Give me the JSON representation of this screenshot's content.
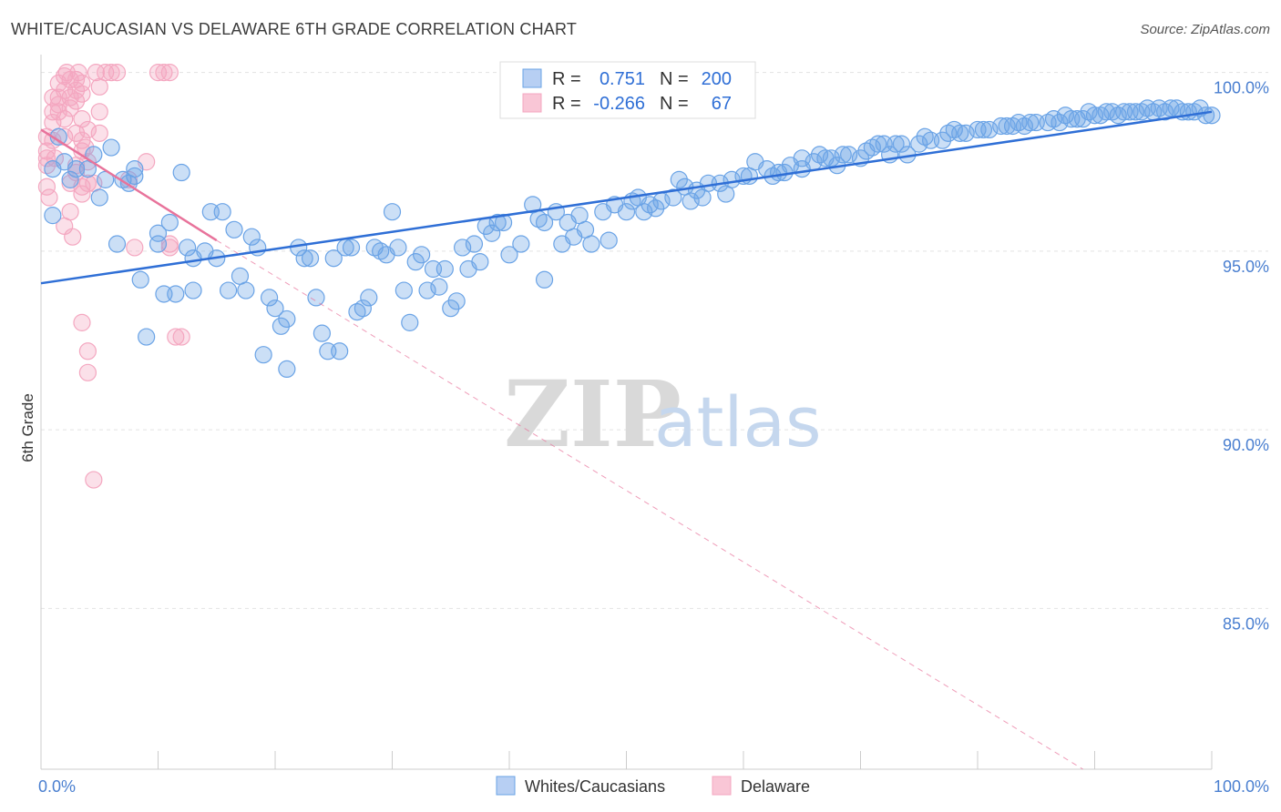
{
  "title": "WHITE/CAUCASIAN VS DELAWARE 6TH GRADE CORRELATION CHART",
  "source": "Source: ZipAtlas.com",
  "watermark": {
    "zip": "ZIP",
    "atlas": "atlas"
  },
  "colors": {
    "blue": "#6aa3e6",
    "blue_line": "#2f6fd6",
    "pink": "#f4a7c0",
    "pink_line": "#e8739b",
    "tick": "#4a7fd0"
  },
  "legend": {
    "rows": [
      {
        "r_label": "R =",
        "r_value": "0.751",
        "n_label": "N =",
        "n_value": "200"
      },
      {
        "r_label": "R =",
        "r_value": "-0.266",
        "n_label": "N =",
        "n_value": "67"
      }
    ]
  },
  "bottom_legend": [
    "Whites/Caucasians",
    "Delaware"
  ],
  "chart_data": {
    "type": "scatter",
    "title": "WHITE/CAUCASIAN VS DELAWARE 6TH GRADE CORRELATION CHART",
    "xlabel": "",
    "ylabel": "6th Grade",
    "xlim": [
      0,
      100
    ],
    "ylim": [
      80.5,
      100.5
    ],
    "x_tick_labels": [
      "0.0%",
      "100.0%"
    ],
    "y_ticks": [
      85,
      90,
      95,
      100
    ],
    "y_tick_labels": [
      "85.0%",
      "90.0%",
      "95.0%",
      "100.0%"
    ],
    "grid": true,
    "legend_position": "top-center",
    "series": [
      {
        "name": "Whites/Caucasians",
        "color": "#6aa3e6",
        "trend": {
          "x": [
            0,
            100
          ],
          "y": [
            94.1,
            98.9
          ]
        },
        "points": [
          [
            1,
            97.3
          ],
          [
            1,
            96.0
          ],
          [
            1.5,
            98.2
          ],
          [
            2,
            97.5
          ],
          [
            2.5,
            97.0
          ],
          [
            3,
            97.3
          ],
          [
            4,
            97.3
          ],
          [
            4.5,
            97.7
          ],
          [
            5,
            96.5
          ],
          [
            5.5,
            97.0
          ],
          [
            6,
            97.9
          ],
          [
            6.5,
            95.2
          ],
          [
            7,
            97.0
          ],
          [
            7.5,
            96.9
          ],
          [
            8,
            97.3
          ],
          [
            8,
            97.1
          ],
          [
            8.5,
            94.2
          ],
          [
            9,
            92.6
          ],
          [
            10,
            95.2
          ],
          [
            10,
            95.5
          ],
          [
            10.5,
            93.8
          ],
          [
            11,
            95.8
          ],
          [
            11.5,
            93.8
          ],
          [
            12,
            97.2
          ],
          [
            12.5,
            95.1
          ],
          [
            13,
            94.8
          ],
          [
            13,
            93.9
          ],
          [
            14,
            95.0
          ],
          [
            14.5,
            96.1
          ],
          [
            15,
            94.8
          ],
          [
            15.5,
            96.1
          ],
          [
            16,
            93.9
          ],
          [
            16.5,
            95.6
          ],
          [
            17,
            94.3
          ],
          [
            17.5,
            93.9
          ],
          [
            18,
            95.4
          ],
          [
            18.5,
            95.1
          ],
          [
            19,
            92.1
          ],
          [
            19.5,
            93.7
          ],
          [
            20,
            93.4
          ],
          [
            20.5,
            92.9
          ],
          [
            21,
            93.1
          ],
          [
            21,
            91.7
          ],
          [
            22,
            95.1
          ],
          [
            22.5,
            94.8
          ],
          [
            23,
            94.8
          ],
          [
            23.5,
            93.7
          ],
          [
            24,
            92.7
          ],
          [
            24.5,
            92.2
          ],
          [
            25,
            94.8
          ],
          [
            25.5,
            92.2
          ],
          [
            26,
            95.1
          ],
          [
            26.5,
            95.1
          ],
          [
            27,
            93.3
          ],
          [
            27.5,
            93.4
          ],
          [
            28,
            93.7
          ],
          [
            28.5,
            95.1
          ],
          [
            29,
            95.0
          ],
          [
            29.5,
            94.9
          ],
          [
            30,
            96.1
          ],
          [
            30.5,
            95.1
          ],
          [
            31,
            93.9
          ],
          [
            31.5,
            93.0
          ],
          [
            32,
            94.7
          ],
          [
            32.5,
            94.9
          ],
          [
            33,
            93.9
          ],
          [
            33.5,
            94.5
          ],
          [
            34,
            94.0
          ],
          [
            34.5,
            94.5
          ],
          [
            35,
            93.4
          ],
          [
            35.5,
            93.6
          ],
          [
            36,
            95.1
          ],
          [
            36.5,
            94.5
          ],
          [
            37,
            95.2
          ],
          [
            37.5,
            94.7
          ],
          [
            38,
            95.7
          ],
          [
            38.5,
            95.5
          ],
          [
            39,
            95.8
          ],
          [
            39.5,
            95.8
          ],
          [
            40,
            94.9
          ],
          [
            41,
            95.2
          ],
          [
            42,
            96.3
          ],
          [
            42.5,
            95.9
          ],
          [
            43,
            95.8
          ],
          [
            43,
            94.2
          ],
          [
            44,
            96.1
          ],
          [
            44.5,
            95.2
          ],
          [
            45,
            95.8
          ],
          [
            45.5,
            95.4
          ],
          [
            46,
            96.0
          ],
          [
            46.5,
            95.6
          ],
          [
            47,
            95.2
          ],
          [
            48,
            96.1
          ],
          [
            48.5,
            95.3
          ],
          [
            49,
            96.3
          ],
          [
            50,
            96.1
          ],
          [
            50.5,
            96.4
          ],
          [
            51,
            96.5
          ],
          [
            51.5,
            96.1
          ],
          [
            52,
            96.3
          ],
          [
            52.5,
            96.2
          ],
          [
            53,
            96.4
          ],
          [
            54,
            96.5
          ],
          [
            54.5,
            97.0
          ],
          [
            55,
            96.8
          ],
          [
            55.5,
            96.4
          ],
          [
            56,
            96.7
          ],
          [
            56.5,
            96.5
          ],
          [
            57,
            96.9
          ],
          [
            58,
            96.9
          ],
          [
            58.5,
            96.6
          ],
          [
            59,
            97.0
          ],
          [
            60,
            97.1
          ],
          [
            60.5,
            97.1
          ],
          [
            61,
            97.5
          ],
          [
            62,
            97.3
          ],
          [
            62.5,
            97.1
          ],
          [
            63,
            97.2
          ],
          [
            63.5,
            97.2
          ],
          [
            64,
            97.4
          ],
          [
            65,
            97.6
          ],
          [
            65,
            97.3
          ],
          [
            66,
            97.5
          ],
          [
            66.5,
            97.7
          ],
          [
            67,
            97.6
          ],
          [
            67.5,
            97.6
          ],
          [
            68,
            97.4
          ],
          [
            68.5,
            97.7
          ],
          [
            69,
            97.7
          ],
          [
            70,
            97.6
          ],
          [
            70.5,
            97.8
          ],
          [
            71,
            97.9
          ],
          [
            71.5,
            98.0
          ],
          [
            72,
            98.0
          ],
          [
            72.5,
            97.7
          ],
          [
            73,
            98.0
          ],
          [
            73.5,
            98.0
          ],
          [
            74,
            97.7
          ],
          [
            75,
            98.0
          ],
          [
            75.5,
            98.2
          ],
          [
            76,
            98.1
          ],
          [
            77,
            98.1
          ],
          [
            77.5,
            98.3
          ],
          [
            78,
            98.4
          ],
          [
            78.5,
            98.3
          ],
          [
            79,
            98.3
          ],
          [
            80,
            98.4
          ],
          [
            80.5,
            98.4
          ],
          [
            81,
            98.4
          ],
          [
            82,
            98.5
          ],
          [
            82.5,
            98.5
          ],
          [
            83,
            98.5
          ],
          [
            83.5,
            98.6
          ],
          [
            84,
            98.5
          ],
          [
            84.5,
            98.6
          ],
          [
            85,
            98.6
          ],
          [
            86,
            98.6
          ],
          [
            86.5,
            98.7
          ],
          [
            87,
            98.6
          ],
          [
            87.5,
            98.8
          ],
          [
            88,
            98.7
          ],
          [
            88.5,
            98.7
          ],
          [
            89,
            98.7
          ],
          [
            89.5,
            98.9
          ],
          [
            90,
            98.8
          ],
          [
            90.5,
            98.8
          ],
          [
            91,
            98.9
          ],
          [
            91.5,
            98.9
          ],
          [
            92,
            98.8
          ],
          [
            92.5,
            98.9
          ],
          [
            93,
            98.9
          ],
          [
            93.5,
            98.9
          ],
          [
            94,
            98.9
          ],
          [
            94.5,
            99.0
          ],
          [
            95,
            98.9
          ],
          [
            95.5,
            99.0
          ],
          [
            96,
            98.9
          ],
          [
            96.5,
            99.0
          ],
          [
            97,
            99.0
          ],
          [
            97.5,
            98.9
          ],
          [
            98,
            98.9
          ],
          [
            98.5,
            98.9
          ],
          [
            99,
            99.0
          ],
          [
            99.5,
            98.8
          ],
          [
            100,
            98.8
          ]
        ]
      },
      {
        "name": "Delaware",
        "color": "#f4a7c0",
        "trend": {
          "x": [
            0,
            15
          ],
          "y": [
            98.4,
            95.3
          ]
        },
        "trend_extended": {
          "x": [
            15,
            89
          ],
          "y": [
            95.3,
            80.5
          ]
        },
        "points": [
          [
            0.5,
            97.4
          ],
          [
            0.5,
            97.8
          ],
          [
            0.5,
            98.2
          ],
          [
            0.5,
            96.8
          ],
          [
            0.5,
            97.6
          ],
          [
            0.7,
            96.5
          ],
          [
            1,
            98.6
          ],
          [
            1,
            98.9
          ],
          [
            1,
            99.3
          ],
          [
            1,
            98.1
          ],
          [
            1.2,
            97.6
          ],
          [
            1.5,
            99.7
          ],
          [
            1.5,
            99.1
          ],
          [
            1.5,
            98.9
          ],
          [
            1.5,
            99.3
          ],
          [
            2,
            99.5
          ],
          [
            2,
            99.9
          ],
          [
            2,
            98.7
          ],
          [
            2,
            98.2
          ],
          [
            2,
            95.7
          ],
          [
            2.2,
            100
          ],
          [
            2.5,
            99.8
          ],
          [
            2.5,
            99.3
          ],
          [
            2.5,
            99.0
          ],
          [
            2.5,
            96.9
          ],
          [
            2.5,
            96.1
          ],
          [
            2.7,
            95.4
          ],
          [
            3,
            99.8
          ],
          [
            3,
            99.5
          ],
          [
            3,
            99.2
          ],
          [
            3,
            98.3
          ],
          [
            3,
            97.4
          ],
          [
            3,
            97.2
          ],
          [
            3.2,
            100
          ],
          [
            3.5,
            99.7
          ],
          [
            3.5,
            99.4
          ],
          [
            3.5,
            98.7
          ],
          [
            3.5,
            98.1
          ],
          [
            3.5,
            97.8
          ],
          [
            3.5,
            96.8
          ],
          [
            3.5,
            96.6
          ],
          [
            3.5,
            93.0
          ],
          [
            3.8,
            97.9
          ],
          [
            4,
            98.4
          ],
          [
            4,
            97.5
          ],
          [
            4,
            96.9
          ],
          [
            4,
            92.2
          ],
          [
            4,
            91.6
          ],
          [
            4.5,
            96.9
          ],
          [
            4.5,
            88.6
          ],
          [
            4.7,
            100
          ],
          [
            5,
            99.6
          ],
          [
            5,
            98.9
          ],
          [
            5,
            98.3
          ],
          [
            5.5,
            100
          ],
          [
            6,
            100
          ],
          [
            6.5,
            100
          ],
          [
            7.5,
            97.0
          ],
          [
            8,
            95.1
          ],
          [
            9,
            97.5
          ],
          [
            10,
            100
          ],
          [
            10.5,
            100
          ],
          [
            11,
            100
          ],
          [
            11,
            95.2
          ],
          [
            11.5,
            92.6
          ],
          [
            12,
            92.6
          ],
          [
            11,
            95.1
          ]
        ]
      }
    ]
  }
}
